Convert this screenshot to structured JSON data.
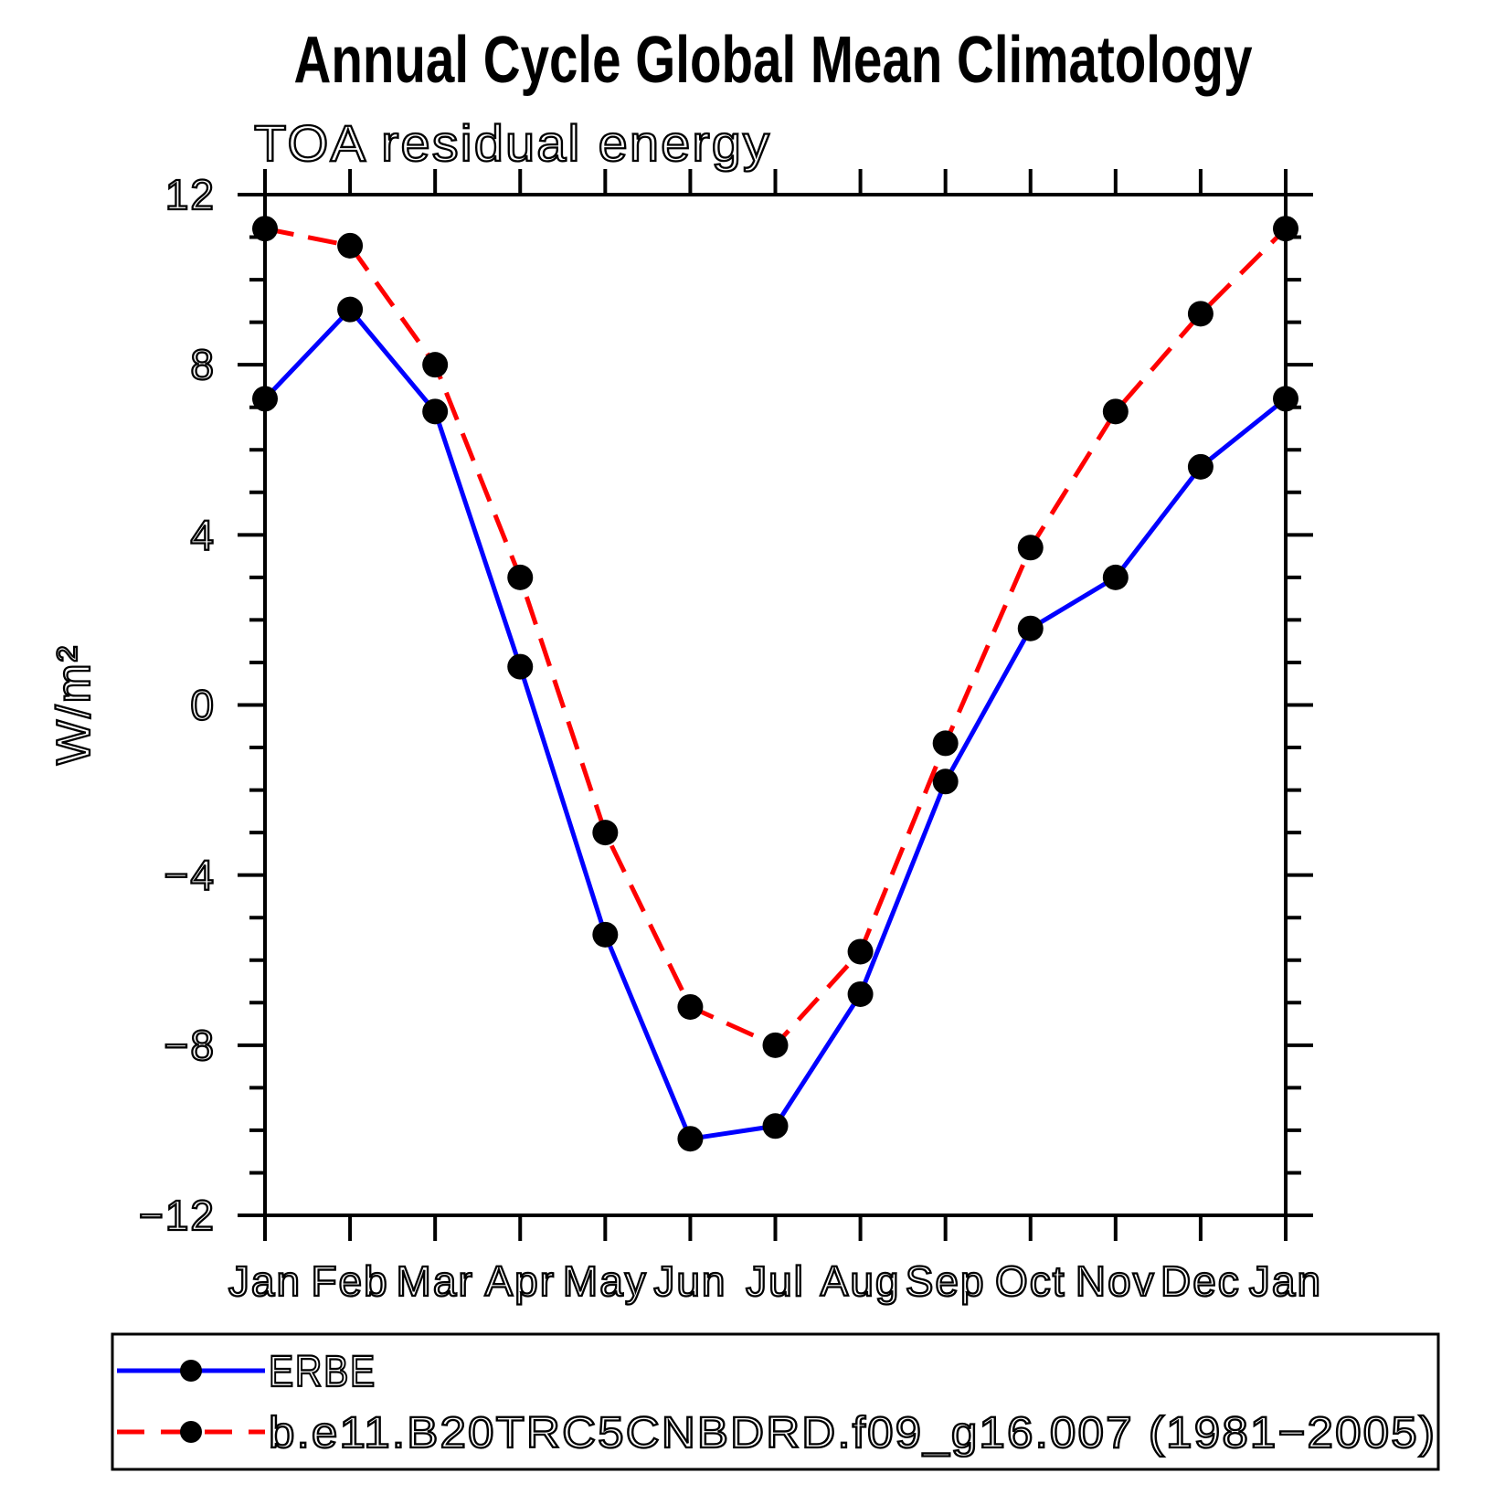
{
  "title": "Annual Cycle Global Mean Climatology",
  "subtitle": "TOA residual energy",
  "ylabel": "W/m²",
  "legend": {
    "items": [
      {
        "label": "ERBE",
        "color": "#0000ff",
        "style": "solid"
      },
      {
        "label": "b.e11.B20TRC5CNBDRD.f09_g16.007 (1981−2005)",
        "color": "#ff0000",
        "style": "dashed"
      }
    ]
  },
  "chart_data": {
    "type": "line",
    "title": "TOA residual energy",
    "xlabel": "",
    "ylabel": "W/m²",
    "categories": [
      "Jan",
      "Feb",
      "Mar",
      "Apr",
      "May",
      "Jun",
      "Jul",
      "Aug",
      "Sep",
      "Oct",
      "Nov",
      "Dec",
      "Jan"
    ],
    "series": [
      {
        "name": "ERBE",
        "color": "#0000ff",
        "style": "solid",
        "values": [
          7.2,
          9.3,
          6.9,
          0.9,
          -5.4,
          -10.2,
          -9.9,
          -6.8,
          -1.8,
          1.8,
          3.0,
          5.6,
          7.2
        ]
      },
      {
        "name": "b.e11.B20TRC5CNBDRD.f09_g16.007 (1981−2005)",
        "color": "#ff0000",
        "style": "dashed",
        "values": [
          11.2,
          10.8,
          8.0,
          3.0,
          -3.0,
          -7.1,
          -8.0,
          -5.8,
          -0.9,
          3.7,
          6.9,
          9.2,
          11.2
        ]
      }
    ],
    "ylim": [
      -12,
      12
    ],
    "yticks_major": [
      12,
      8,
      4,
      0,
      -4,
      -8,
      -12
    ],
    "ytick_minor_step": 1,
    "marker": "filled-circle",
    "marker_color": "#000000",
    "grid": false,
    "legend_position": "bottom"
  }
}
